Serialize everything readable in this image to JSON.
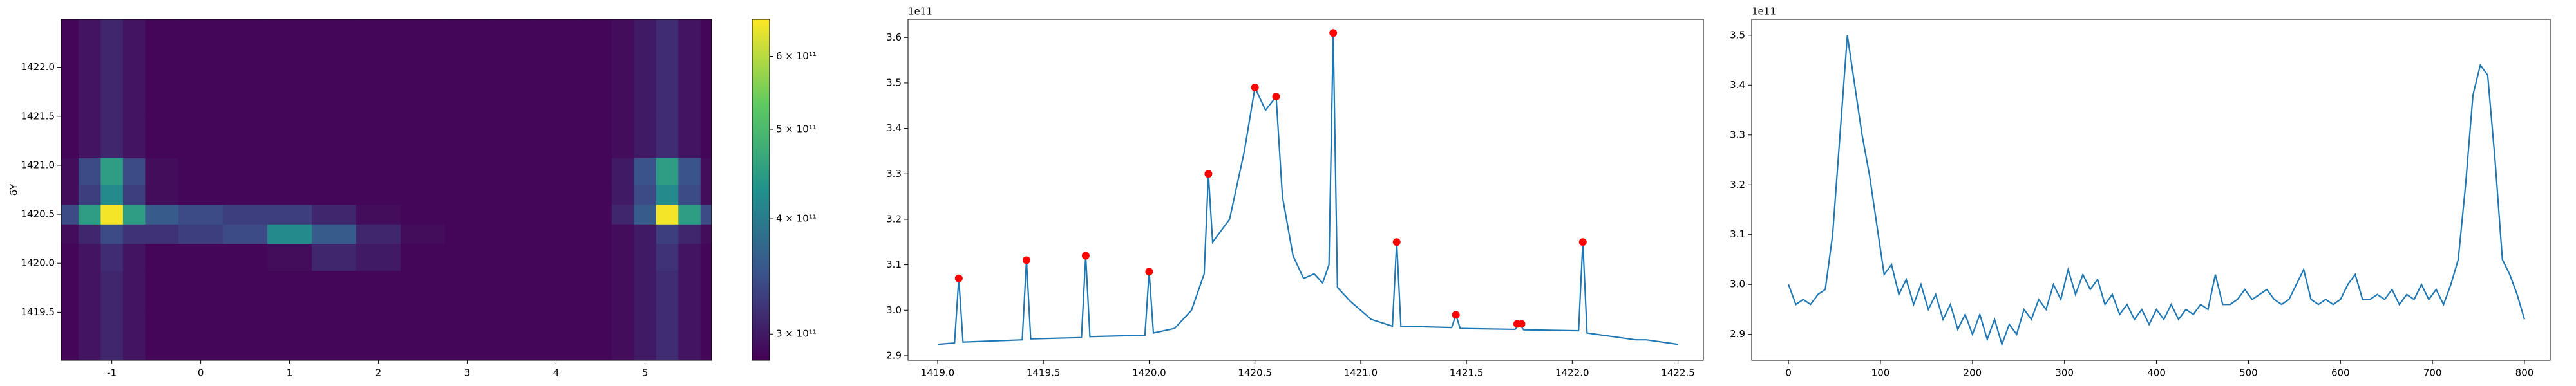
{
  "chart_data": [
    {
      "type": "heatmap",
      "colormap": "viridis",
      "ylabel": "δY",
      "xlim": [
        -1.57,
        5.75
      ],
      "ylim": [
        1419.01,
        1422.49
      ],
      "xticks": [
        -1,
        0,
        1,
        2,
        3,
        4,
        5
      ],
      "yticks": [
        {
          "value": 1419.5,
          "label": "1419.5"
        },
        {
          "value": 1420.0,
          "label": "1420.0"
        },
        {
          "value": 1420.5,
          "label": "1420.5"
        },
        {
          "value": 1421.0,
          "label": "1421.0"
        },
        {
          "value": 1421.5,
          "label": "1421.5"
        },
        {
          "value": 1422.0,
          "label": "1422.0"
        }
      ],
      "x": [
        -1.5,
        -1.25,
        -1,
        -0.75,
        -0.5,
        0,
        0.5,
        1,
        1.5,
        2,
        2.5,
        3,
        3.5,
        4,
        4.5,
        4.75,
        5,
        5.25,
        5.5,
        5.75
      ],
      "y": [
        1419.25,
        1419.75,
        1420.1,
        1420.3,
        1420.5,
        1420.7,
        1420.9,
        1421.25,
        1421.75,
        1422.25
      ],
      "z": [
        [
          285000000000.0,
          295000000000.0,
          310000000000.0,
          295000000000.0,
          285000000000.0,
          285000000000.0,
          285000000000.0,
          285000000000.0,
          285000000000.0,
          285000000000.0,
          285000000000.0,
          285000000000.0,
          285000000000.0,
          285000000000.0,
          285000000000.0,
          290000000000.0,
          300000000000.0,
          315000000000.0,
          295000000000.0,
          285000000000.0
        ],
        [
          285000000000.0,
          295000000000.0,
          310000000000.0,
          295000000000.0,
          285000000000.0,
          285000000000.0,
          285000000000.0,
          285000000000.0,
          285000000000.0,
          285000000000.0,
          285000000000.0,
          285000000000.0,
          285000000000.0,
          285000000000.0,
          285000000000.0,
          290000000000.0,
          300000000000.0,
          315000000000.0,
          295000000000.0,
          285000000000.0
        ],
        [
          285000000000.0,
          295000000000.0,
          315000000000.0,
          295000000000.0,
          285000000000.0,
          285000000000.0,
          285000000000.0,
          290000000000.0,
          310000000000.0,
          300000000000.0,
          285000000000.0,
          285000000000.0,
          285000000000.0,
          285000000000.0,
          285000000000.0,
          290000000000.0,
          300000000000.0,
          320000000000.0,
          295000000000.0,
          285000000000.0
        ],
        [
          290000000000.0,
          310000000000.0,
          340000000000.0,
          320000000000.0,
          320000000000.0,
          330000000000.0,
          340000000000.0,
          420000000000.0,
          360000000000.0,
          310000000000.0,
          290000000000.0,
          285000000000.0,
          285000000000.0,
          285000000000.0,
          285000000000.0,
          290000000000.0,
          300000000000.0,
          330000000000.0,
          310000000000.0,
          290000000000.0
        ],
        [
          340000000000.0,
          450000000000.0,
          650000000000.0,
          450000000000.0,
          360000000000.0,
          340000000000.0,
          330000000000.0,
          330000000000.0,
          310000000000.0,
          290000000000.0,
          285000000000.0,
          285000000000.0,
          285000000000.0,
          285000000000.0,
          285000000000.0,
          310000000000.0,
          360000000000.0,
          650000000000.0,
          450000000000.0,
          340000000000.0
        ],
        [
          290000000000.0,
          330000000000.0,
          420000000000.0,
          330000000000.0,
          290000000000.0,
          285000000000.0,
          285000000000.0,
          285000000000.0,
          285000000000.0,
          285000000000.0,
          285000000000.0,
          285000000000.0,
          285000000000.0,
          285000000000.0,
          285000000000.0,
          300000000000.0,
          340000000000.0,
          420000000000.0,
          340000000000.0,
          290000000000.0
        ],
        [
          290000000000.0,
          340000000000.0,
          450000000000.0,
          340000000000.0,
          290000000000.0,
          285000000000.0,
          285000000000.0,
          285000000000.0,
          285000000000.0,
          285000000000.0,
          285000000000.0,
          285000000000.0,
          285000000000.0,
          285000000000.0,
          285000000000.0,
          300000000000.0,
          350000000000.0,
          450000000000.0,
          350000000000.0,
          290000000000.0
        ],
        [
          285000000000.0,
          295000000000.0,
          310000000000.0,
          295000000000.0,
          285000000000.0,
          285000000000.0,
          285000000000.0,
          285000000000.0,
          285000000000.0,
          285000000000.0,
          285000000000.0,
          285000000000.0,
          285000000000.0,
          285000000000.0,
          285000000000.0,
          290000000000.0,
          300000000000.0,
          315000000000.0,
          295000000000.0,
          285000000000.0
        ],
        [
          285000000000.0,
          295000000000.0,
          310000000000.0,
          295000000000.0,
          285000000000.0,
          285000000000.0,
          285000000000.0,
          285000000000.0,
          285000000000.0,
          285000000000.0,
          285000000000.0,
          285000000000.0,
          285000000000.0,
          285000000000.0,
          285000000000.0,
          290000000000.0,
          300000000000.0,
          315000000000.0,
          295000000000.0,
          285000000000.0
        ],
        [
          285000000000.0,
          295000000000.0,
          310000000000.0,
          295000000000.0,
          285000000000.0,
          285000000000.0,
          285000000000.0,
          285000000000.0,
          285000000000.0,
          285000000000.0,
          285000000000.0,
          285000000000.0,
          285000000000.0,
          285000000000.0,
          285000000000.0,
          290000000000.0,
          300000000000.0,
          315000000000.0,
          295000000000.0,
          285000000000.0
        ]
      ],
      "colorbar": {
        "scale": "log",
        "lim": [
          281000000000.0,
          658000000000.0
        ],
        "ticks": [
          {
            "value": 300000000000.0,
            "label": "3 × 10¹¹"
          },
          {
            "value": 400000000000.0,
            "label": "4 × 10¹¹"
          },
          {
            "value": 500000000000.0,
            "label": "5 × 10¹¹"
          },
          {
            "value": 600000000000.0,
            "label": "6 × 10¹¹"
          }
        ]
      }
    },
    {
      "type": "line",
      "offset_text": "1e11",
      "xlim": [
        1418.86,
        1422.62
      ],
      "ylim": [
        2.89,
        3.64
      ],
      "xticks": [
        {
          "value": 1419.0,
          "label": "1419.0"
        },
        {
          "value": 1419.5,
          "label": "1419.5"
        },
        {
          "value": 1420.0,
          "label": "1420.0"
        },
        {
          "value": 1420.5,
          "label": "1420.5"
        },
        {
          "value": 1421.0,
          "label": "1421.0"
        },
        {
          "value": 1421.5,
          "label": "1421.5"
        },
        {
          "value": 1422.0,
          "label": "1422.0"
        },
        {
          "value": 1422.5,
          "label": "1422.5"
        }
      ],
      "yticks": [
        2.9,
        {
          "value": 3.0,
          "label": "3.0"
        },
        3.1,
        3.2,
        3.3,
        3.4,
        3.5,
        3.6
      ],
      "series": [
        {
          "type": "line",
          "color": "#1f77b4",
          "x": [
            1419.0,
            1419.08,
            1419.1,
            1419.12,
            1419.4,
            1419.42,
            1419.44,
            1419.68,
            1419.7,
            1419.72,
            1419.98,
            1420.0,
            1420.02,
            1420.12,
            1420.2,
            1420.26,
            1420.28,
            1420.3,
            1420.38,
            1420.45,
            1420.5,
            1420.55,
            1420.6,
            1420.63,
            1420.68,
            1420.73,
            1420.78,
            1420.82,
            1420.85,
            1420.87,
            1420.89,
            1420.95,
            1421.05,
            1421.15,
            1421.17,
            1421.19,
            1421.43,
            1421.45,
            1421.47,
            1421.73,
            1421.75,
            1421.77,
            1422.03,
            1422.05,
            1422.07,
            1422.3,
            1422.35,
            1422.5
          ],
          "values": [
            2.925,
            2.928,
            3.07,
            2.93,
            2.935,
            3.11,
            2.937,
            2.94,
            3.12,
            2.942,
            2.945,
            3.085,
            2.95,
            2.96,
            3.0,
            3.08,
            3.3,
            3.15,
            3.2,
            3.35,
            3.49,
            3.44,
            3.47,
            3.25,
            3.12,
            3.07,
            3.08,
            3.06,
            3.1,
            3.61,
            3.05,
            3.02,
            2.98,
            2.965,
            3.15,
            2.965,
            2.962,
            2.99,
            2.96,
            2.958,
            2.97,
            2.957,
            2.955,
            3.15,
            2.95,
            2.935,
            2.935,
            2.925
          ]
        },
        {
          "type": "scatter",
          "color": "#ff0000",
          "x": [
            1419.1,
            1419.42,
            1419.7,
            1420.0,
            1420.28,
            1420.5,
            1420.6,
            1420.87,
            1421.17,
            1421.45,
            1421.74,
            1421.76,
            1422.05
          ],
          "values": [
            3.07,
            3.11,
            3.12,
            3.085,
            3.3,
            3.49,
            3.47,
            3.61,
            3.15,
            2.99,
            2.97,
            2.97,
            3.15
          ]
        }
      ]
    },
    {
      "type": "line",
      "offset_text": "1e11",
      "xlim": [
        -40,
        828
      ],
      "ylim": [
        2.848,
        3.532
      ],
      "xticks": [
        0,
        100,
        200,
        300,
        400,
        500,
        600,
        700,
        800
      ],
      "yticks": [
        2.9,
        {
          "value": 3.0,
          "label": "3.0"
        },
        3.1,
        3.2,
        3.3,
        3.4,
        3.5
      ],
      "series": [
        {
          "type": "line",
          "color": "#1f77b4",
          "x": [
            0,
            8,
            16,
            24,
            32,
            40,
            48,
            56,
            64,
            72,
            80,
            88,
            96,
            104,
            112,
            120,
            128,
            136,
            144,
            152,
            160,
            168,
            176,
            184,
            192,
            200,
            208,
            216,
            224,
            232,
            240,
            248,
            256,
            264,
            272,
            280,
            288,
            296,
            304,
            312,
            320,
            328,
            336,
            344,
            352,
            360,
            368,
            376,
            384,
            392,
            400,
            408,
            416,
            424,
            432,
            440,
            448,
            456,
            464,
            472,
            480,
            488,
            496,
            504,
            512,
            520,
            528,
            536,
            544,
            552,
            560,
            568,
            576,
            584,
            592,
            600,
            608,
            616,
            624,
            632,
            640,
            648,
            656,
            664,
            672,
            680,
            688,
            696,
            704,
            712,
            720,
            728,
            736,
            744,
            752,
            760,
            768,
            776,
            784,
            792,
            800
          ],
          "values": [
            3.0,
            2.96,
            2.97,
            2.96,
            2.98,
            2.99,
            3.1,
            3.3,
            3.5,
            3.4,
            3.3,
            3.22,
            3.12,
            3.02,
            3.04,
            2.98,
            3.01,
            2.96,
            3.0,
            2.95,
            2.98,
            2.93,
            2.96,
            2.91,
            2.94,
            2.9,
            2.94,
            2.89,
            2.93,
            2.88,
            2.92,
            2.9,
            2.95,
            2.93,
            2.97,
            2.95,
            3.0,
            2.97,
            3.03,
            2.98,
            3.02,
            2.99,
            3.01,
            2.96,
            2.98,
            2.94,
            2.96,
            2.93,
            2.95,
            2.92,
            2.95,
            2.93,
            2.96,
            2.93,
            2.95,
            2.94,
            2.96,
            2.95,
            3.02,
            2.96,
            2.96,
            2.97,
            2.99,
            2.97,
            2.98,
            2.99,
            2.97,
            2.96,
            2.97,
            3.0,
            3.03,
            2.97,
            2.96,
            2.97,
            2.96,
            2.97,
            3.0,
            3.02,
            2.97,
            2.97,
            2.98,
            2.97,
            2.99,
            2.96,
            2.98,
            2.97,
            3.0,
            2.97,
            2.99,
            2.96,
            3.0,
            3.05,
            3.2,
            3.38,
            3.44,
            3.42,
            3.25,
            3.05,
            3.02,
            2.98,
            2.93
          ]
        }
      ]
    }
  ]
}
